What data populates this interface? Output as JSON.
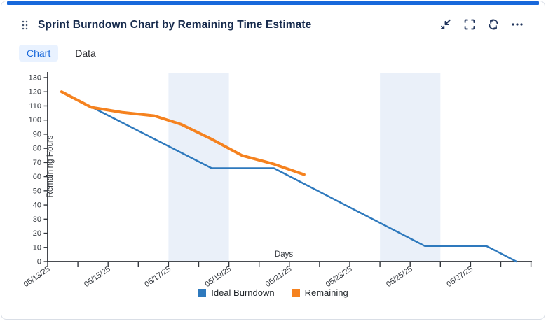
{
  "widget": {
    "title": "Sprint Burndown Chart by Remaining Time Estimate",
    "accent_color": "#1868DB",
    "icon_color": "#20345C",
    "header_icons": [
      {
        "name": "drag-handle-icon",
        "glyph": "six-dot-grid"
      },
      {
        "name": "collapse-icon",
        "glyph": "diagonal-arrows-inward"
      },
      {
        "name": "fullscreen-icon",
        "glyph": "corner-brackets"
      },
      {
        "name": "refresh-icon",
        "glyph": "circular-arrows"
      },
      {
        "name": "more-options-icon",
        "glyph": "ellipsis"
      }
    ],
    "tabs": [
      {
        "label": "Chart",
        "active": true
      },
      {
        "label": "Data",
        "active": false
      }
    ]
  },
  "chart_data": {
    "type": "line",
    "title": "Sprint Burndown Chart by Remaining Time Estimate",
    "xlabel": "Days",
    "ylabel": "Remaining Hours",
    "ylim": [
      0,
      130
    ],
    "y_ticks": [
      0,
      10,
      20,
      30,
      40,
      50,
      60,
      70,
      80,
      90,
      100,
      110,
      120,
      130
    ],
    "x_axis": {
      "start_date": "05/13/25",
      "end_date": "05/29/25",
      "span_days": 16,
      "tick_interval_days": 1,
      "label_interval_days": 2
    },
    "x_labels": [
      "05/13/25",
      "05/15/25",
      "05/17/25",
      "05/19/25",
      "05/21/25",
      "05/23/25",
      "05/25/25",
      "05/27/25"
    ],
    "grid": false,
    "legend": [
      "Ideal Burndown",
      "Remaining"
    ],
    "legend_position": "bottom-center",
    "weekend_bands": [
      {
        "from_day": 4.0,
        "to_day": 6.0,
        "from_date": "05/17/25",
        "to_date": "05/19/25"
      },
      {
        "from_day": 11.0,
        "to_day": 13.0,
        "from_date": "05/24/25",
        "to_date": "05/26/25"
      }
    ],
    "band_color": "#EAF0F9",
    "series": [
      {
        "name": "Ideal Burndown",
        "color": "#2E79BD",
        "stroke_width": 2.5,
        "points_day_value": [
          [
            0.46,
            120
          ],
          [
            5.43,
            66
          ],
          [
            7.49,
            66
          ],
          [
            12.48,
            11
          ],
          [
            14.52,
            11
          ],
          [
            15.52,
            0
          ]
        ]
      },
      {
        "name": "Remaining",
        "color": "#F5821F",
        "stroke_width": 4,
        "points_day_value": [
          [
            0.46,
            120
          ],
          [
            1.45,
            109
          ],
          [
            2.45,
            105.5
          ],
          [
            3.53,
            103
          ],
          [
            4.42,
            97
          ],
          [
            5.43,
            86.5
          ],
          [
            6.43,
            75
          ],
          [
            7.47,
            69
          ],
          [
            8.49,
            61.5
          ]
        ]
      }
    ]
  }
}
